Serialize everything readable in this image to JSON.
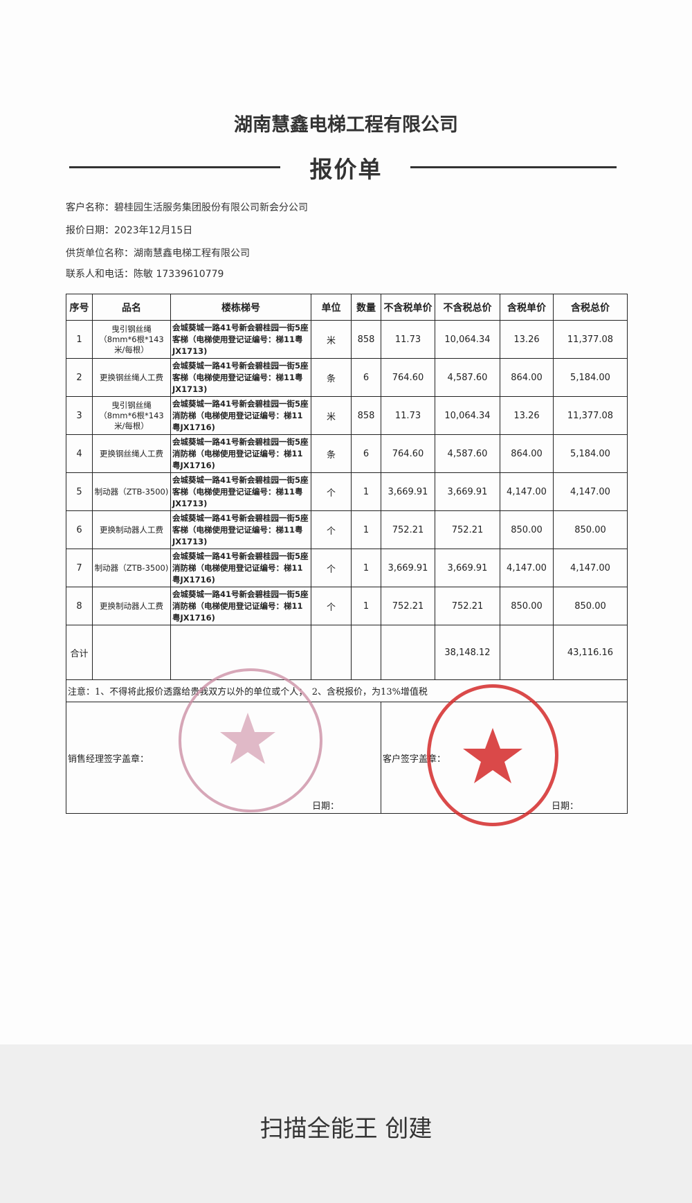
{
  "header": {
    "company": "湖南慧鑫电梯工程有限公司",
    "doc_title": "报价单"
  },
  "info": [
    {
      "label": "客户名称：",
      "value": "碧桂园生活服务集团股份有限公司新会分公司"
    },
    {
      "label": "报价日期：",
      "value": "2023年12月15日"
    },
    {
      "label": "供货单位名称：",
      "value": "湖南慧鑫电梯工程有限公司"
    },
    {
      "label": "联系人和电话：",
      "value": "陈敏 17339610779"
    }
  ],
  "table": {
    "columns": [
      "序号",
      "品名",
      "楼栋梯号",
      "单位",
      "数量",
      "不含税单价",
      "不含税总价",
      "含税单价",
      "含税总价"
    ],
    "rows": [
      {
        "no": "1",
        "item": "曳引钢丝绳（8mm*6根*143米/每根）",
        "location": "会城葵城一路41号新会碧桂园一街5座客梯（电梯使用登记证编号：梯11粤JX1713)",
        "unit": "米",
        "qty": "858",
        "unit_price": "11.73",
        "total": "10,064.34",
        "unit_price_tax": "13.26",
        "total_tax": "11,377.08"
      },
      {
        "no": "2",
        "item": "更换钢丝绳人工费",
        "location": "会城葵城一路41号新会碧桂园一街5座客梯（电梯使用登记证编号：梯11粤JX1713)",
        "unit": "条",
        "qty": "6",
        "unit_price": "764.60",
        "total": "4,587.60",
        "unit_price_tax": "864.00",
        "total_tax": "5,184.00"
      },
      {
        "no": "3",
        "item": "曳引钢丝绳（8mm*6根*143米/每根）",
        "location": "会城葵城一路41号新会碧桂园一街5座消防梯（电梯使用登记证编号：梯11粤JX1716)",
        "unit": "米",
        "qty": "858",
        "unit_price": "11.73",
        "total": "10,064.34",
        "unit_price_tax": "13.26",
        "total_tax": "11,377.08"
      },
      {
        "no": "4",
        "item": "更换钢丝绳人工费",
        "location": "会城葵城一路41号新会碧桂园一街5座消防梯（电梯使用登记证编号：梯11粤JX1716)",
        "unit": "条",
        "qty": "6",
        "unit_price": "764.60",
        "total": "4,587.60",
        "unit_price_tax": "864.00",
        "total_tax": "5,184.00"
      },
      {
        "no": "5",
        "item": "制动器（ZTB-3500)",
        "location": "会城葵城一路41号新会碧桂园一街5座客梯（电梯使用登记证编号：梯11粤JX1713)",
        "unit": "个",
        "qty": "1",
        "unit_price": "3,669.91",
        "total": "3,669.91",
        "unit_price_tax": "4,147.00",
        "total_tax": "4,147.00"
      },
      {
        "no": "6",
        "item": "更换制动器人工费",
        "location": "会城葵城一路41号新会碧桂园一街5座客梯（电梯使用登记证编号：梯11粤JX1713)",
        "unit": "个",
        "qty": "1",
        "unit_price": "752.21",
        "total": "752.21",
        "unit_price_tax": "850.00",
        "total_tax": "850.00"
      },
      {
        "no": "7",
        "item": "制动器（ZTB-3500)",
        "location": "会城葵城一路41号新会碧桂园一街5座消防梯（电梯使用登记证编号：梯11粤JX1716)",
        "unit": "个",
        "qty": "1",
        "unit_price": "3,669.91",
        "total": "3,669.91",
        "unit_price_tax": "4,147.00",
        "total_tax": "4,147.00"
      },
      {
        "no": "8",
        "item": "更换制动器人工费",
        "location": "会城葵城一路41号新会碧桂园一街5座消防梯（电梯使用登记证编号：梯11粤JX1716)",
        "unit": "个",
        "qty": "1",
        "unit_price": "752.21",
        "total": "752.21",
        "unit_price_tax": "850.00",
        "total_tax": "850.00"
      }
    ],
    "total": {
      "label": "合计",
      "total": "38,148.12",
      "total_tax": "43,116.16"
    },
    "note": "注意：1、不得将此报价透露给贵我双方以外的单位或个人；　2、含税报价，为13%增值税",
    "sales_sign": "销售经理签字盖章：",
    "customer_sign": "客户签字盖章：",
    "date_label": "日期："
  },
  "stamps": {
    "seller_color": "#c98aa0",
    "customer_color": "#d42a2a"
  },
  "footer": {
    "text": "扫描全能王 创建"
  }
}
